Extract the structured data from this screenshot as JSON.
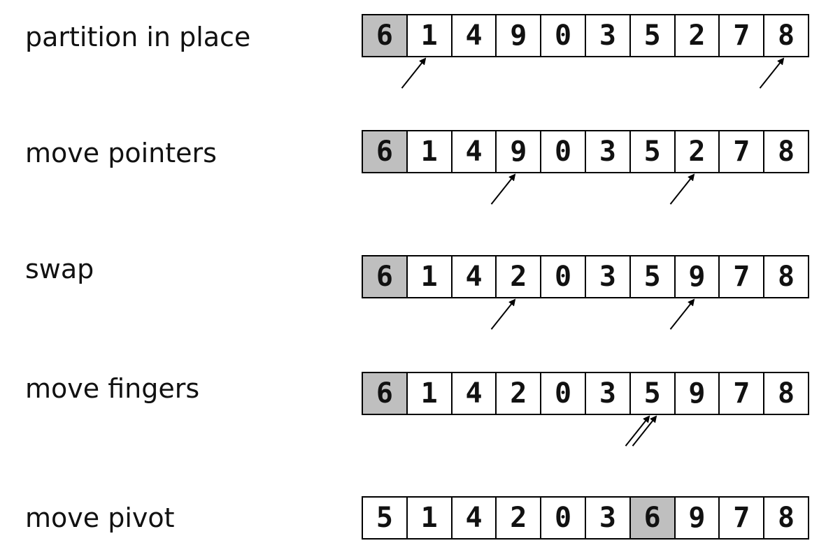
{
  "steps": [
    {
      "label": "partition in place",
      "cells": [
        "6",
        "1",
        "4",
        "9",
        "0",
        "3",
        "5",
        "2",
        "7",
        "8"
      ],
      "highlight": [
        0
      ],
      "pointers": [
        1,
        9
      ]
    },
    {
      "label": "move pointers",
      "cells": [
        "6",
        "1",
        "4",
        "9",
        "0",
        "3",
        "5",
        "2",
        "7",
        "8"
      ],
      "highlight": [
        0
      ],
      "pointers": [
        3,
        7
      ]
    },
    {
      "label": "swap",
      "cells": [
        "6",
        "1",
        "4",
        "2",
        "0",
        "3",
        "5",
        "9",
        "7",
        "8"
      ],
      "highlight": [
        0
      ],
      "pointers": [
        3,
        7
      ]
    },
    {
      "label": "move fingers",
      "cells": [
        "6",
        "1",
        "4",
        "2",
        "0",
        "3",
        "5",
        "9",
        "7",
        "8"
      ],
      "highlight": [
        0
      ],
      "pointers": [
        6,
        6
      ]
    },
    {
      "label": "move pivot",
      "cells": [
        "5",
        "1",
        "4",
        "2",
        "0",
        "3",
        "6",
        "9",
        "7",
        "8"
      ],
      "highlight": [
        6
      ],
      "pointers": []
    }
  ],
  "colors": {
    "highlight": "#bfbfbf",
    "border": "#000000",
    "arrow": "#000000"
  }
}
